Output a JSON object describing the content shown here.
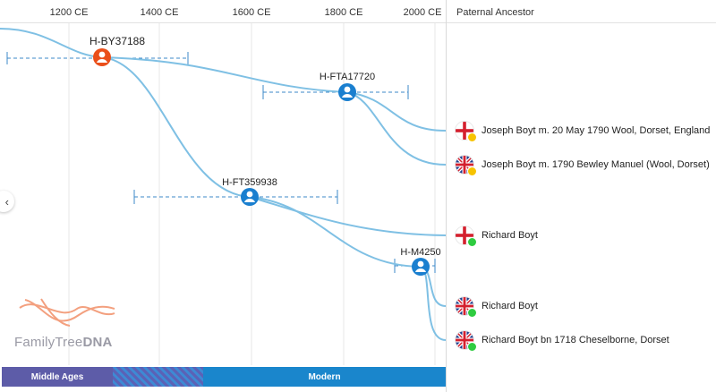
{
  "timeline": {
    "axis_labels": [
      "1200 CE",
      "1400 CE",
      "1600 CE",
      "1800 CE",
      "2000 CE"
    ]
  },
  "panel": {
    "title": "Paternal Ancestor"
  },
  "nodes": [
    {
      "id": "H-BY37188",
      "color": "#ea4f1a"
    },
    {
      "id": "H-FTA17720",
      "color": "#1a7fcf"
    },
    {
      "id": "H-FT359938",
      "color": "#1a7fcf"
    },
    {
      "id": "H-M4250",
      "color": "#1a7fcf"
    }
  ],
  "ancestors": [
    {
      "name": "Joseph Boyt m. 20 May 1790 Wool, Dorset, England",
      "flag": "england",
      "status_color": "#f7c300"
    },
    {
      "name": "Joseph Boyt m. 1790 Bewley Manuel (Wool, Dorset)",
      "flag": "uk",
      "status_color": "#f7c300"
    },
    {
      "name": "Richard Boyt",
      "flag": "england",
      "status_color": "#2ecc40"
    },
    {
      "name": "Richard Boyt",
      "flag": "uk",
      "status_color": "#2ecc40"
    },
    {
      "name": "Richard Boyt bn 1718 Cheselborne, Dorset",
      "flag": "uk",
      "status_color": "#2ecc40"
    }
  ],
  "eras": [
    {
      "label": "Middle Ages",
      "color": "#5d5ca8"
    },
    {
      "label": "Modern",
      "color": "#1a86cc"
    }
  ],
  "logo": {
    "part1": "FamilyTree",
    "part2": "DNA"
  },
  "colors": {
    "branch": "#7fc0e4",
    "range": "#3d8ac9"
  }
}
